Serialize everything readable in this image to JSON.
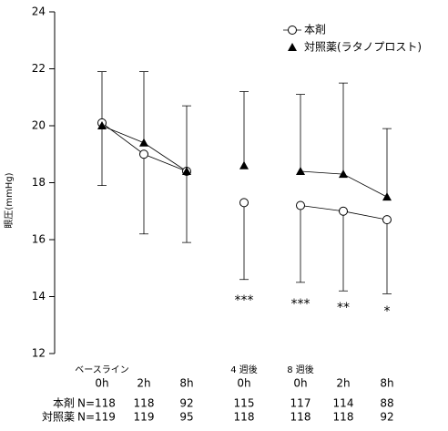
{
  "chart_data": {
    "type": "line",
    "ylabel": "眼圧(mmHg)",
    "ylim": [
      12,
      24
    ],
    "yticks": [
      12,
      14,
      16,
      18,
      20,
      22,
      24
    ],
    "categories": [
      "0h",
      "2h",
      "8h",
      "0h",
      "0h",
      "2h",
      "8h"
    ],
    "x_groups": [
      {
        "label": "ベースライン",
        "categories": [
          0,
          1,
          2
        ]
      },
      {
        "label": "4 週後",
        "categories": [
          3
        ]
      },
      {
        "label": "8 週後",
        "categories": [
          4,
          5,
          6
        ]
      }
    ],
    "series": [
      {
        "name": "本剤",
        "marker": "circle",
        "color": "#000000",
        "error_direction": "down",
        "values": [
          20.1,
          19.0,
          18.4,
          17.3,
          17.2,
          17.0,
          16.7
        ],
        "errors": [
          2.2,
          2.8,
          2.5,
          2.7,
          2.7,
          2.8,
          2.6
        ]
      },
      {
        "name": "対照薬(ラタノプロスト)",
        "marker": "triangle",
        "color": "#000000",
        "error_direction": "up",
        "values": [
          20.0,
          19.4,
          18.4,
          18.6,
          18.4,
          18.3,
          17.5
        ],
        "errors": [
          1.9,
          2.5,
          2.3,
          2.6,
          2.7,
          3.2,
          2.4
        ]
      }
    ],
    "significance": [
      null,
      null,
      null,
      "***",
      "***",
      "**",
      "*"
    ],
    "n_table": [
      {
        "label": "本剤",
        "values": [
          "N=118",
          "118",
          "92",
          "115",
          "117",
          "114",
          "88"
        ]
      },
      {
        "label": "対照薬",
        "values": [
          "N=119",
          "119",
          "95",
          "118",
          "118",
          "118",
          "92"
        ]
      }
    ]
  }
}
